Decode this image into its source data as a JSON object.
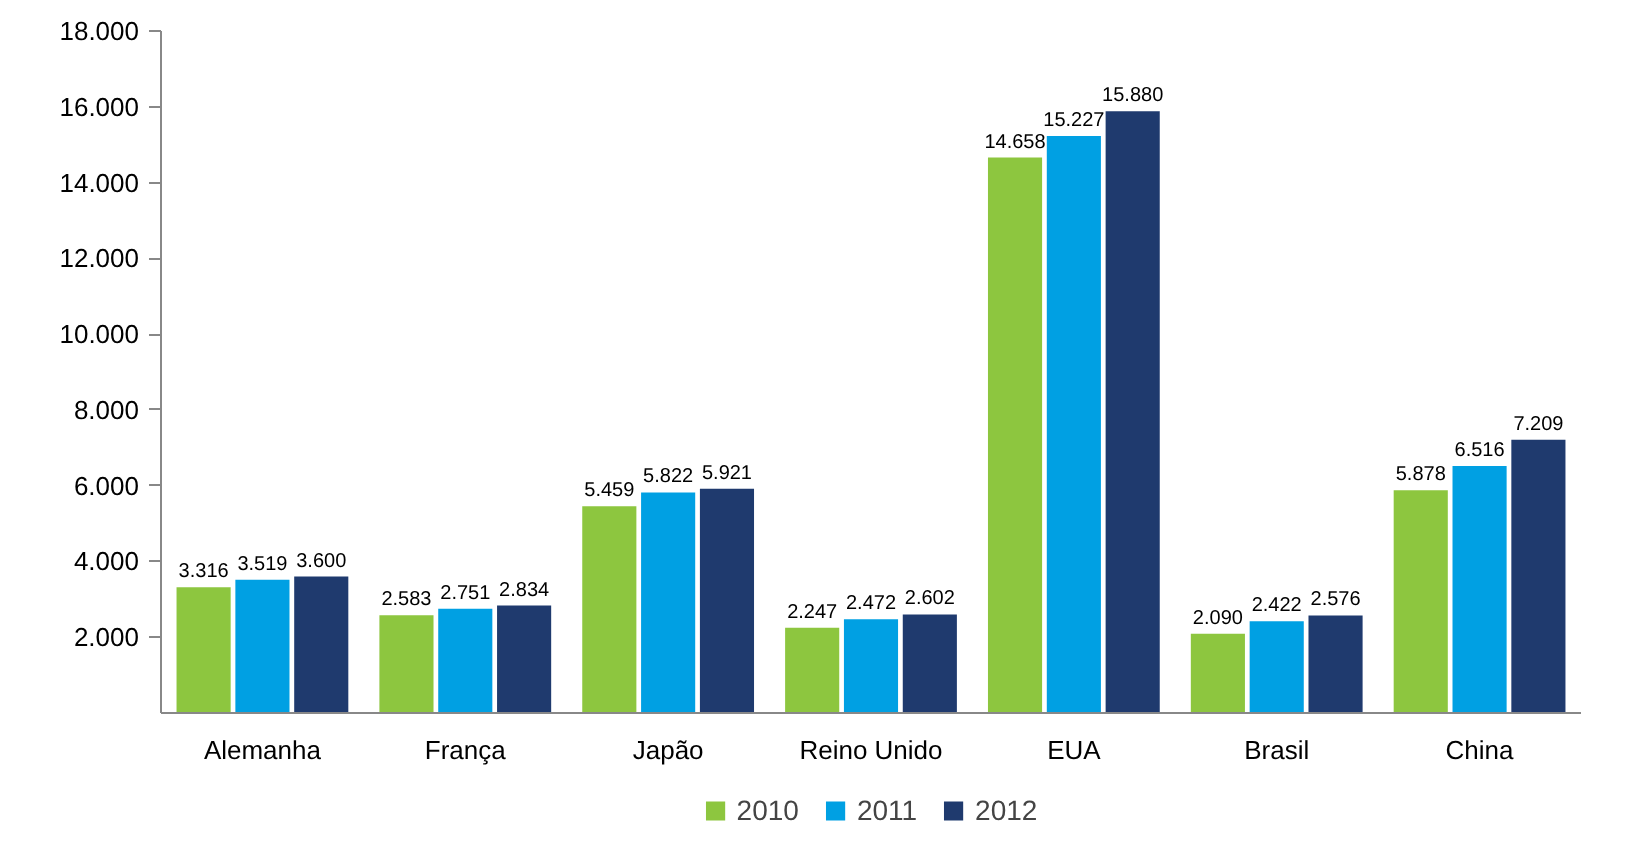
{
  "chart_data": {
    "type": "bar",
    "categories": [
      "Alemanha",
      "França",
      "Japão",
      "Reino Unido",
      "EUA",
      "Brasil",
      "China"
    ],
    "series": [
      {
        "name": "2010",
        "color": "#8dc63f",
        "values": [
          3316,
          2583,
          5459,
          2247,
          14658,
          2090,
          5878
        ],
        "value_labels": [
          "3.316",
          "2.583",
          "5.459",
          "2.247",
          "14.658",
          "2.090",
          "5.878"
        ]
      },
      {
        "name": "2011",
        "color": "#00a0e3",
        "values": [
          3519,
          2751,
          5822,
          2472,
          15227,
          2422,
          6516
        ],
        "value_labels": [
          "3.519",
          "2.751",
          "5.822",
          "2.472",
          "15.227",
          "2.422",
          "6.516"
        ]
      },
      {
        "name": "2012",
        "color": "#1f3a6e",
        "values": [
          3600,
          2834,
          5921,
          2602,
          15880,
          2576,
          7209
        ],
        "value_labels": [
          "3.600",
          "2.834",
          "5.921",
          "2.602",
          "15.880",
          "2.576",
          "7.209"
        ]
      }
    ],
    "ylim": [
      0,
      18000
    ],
    "yticks": [
      {
        "value": 2000,
        "label": "2.000"
      },
      {
        "value": 4000,
        "label": "4.000"
      },
      {
        "value": 6000,
        "label": "6.000"
      },
      {
        "value": 8000,
        "label": "8.000"
      },
      {
        "value": 10000,
        "label": "10.000"
      },
      {
        "value": 12000,
        "label": "12.000"
      },
      {
        "value": 14000,
        "label": "14.000"
      },
      {
        "value": 16000,
        "label": "16.000"
      },
      {
        "value": 18000,
        "label": "18.000"
      }
    ],
    "grid": false,
    "legend": "bottom"
  }
}
